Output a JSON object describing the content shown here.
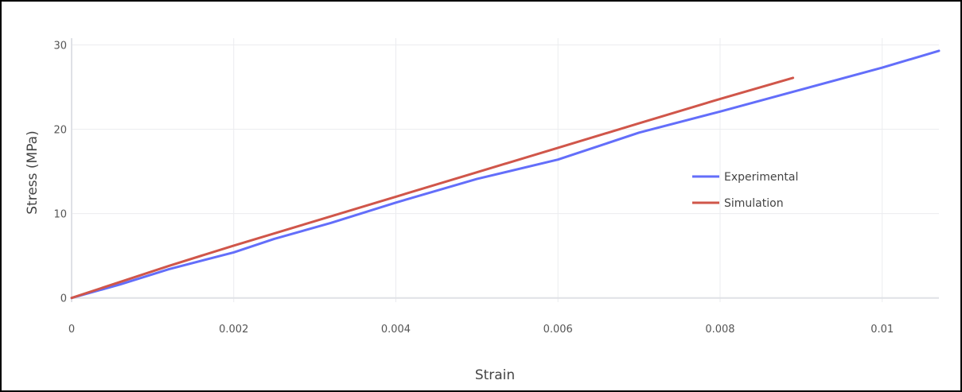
{
  "chart_data": {
    "type": "line",
    "title": "",
    "xlabel": "Strain",
    "ylabel": "Stress (MPa)",
    "xlim": [
      0,
      0.0107
    ],
    "ylim": [
      -0.5,
      30.8
    ],
    "x_ticks": [
      0,
      0.002,
      0.004,
      0.006,
      0.008,
      0.01
    ],
    "x_tick_labels": [
      "0",
      "0.002",
      "0.004",
      "0.006",
      "0.008",
      "0.01"
    ],
    "y_ticks": [
      0,
      10,
      20,
      30
    ],
    "y_tick_labels": [
      "0",
      "10",
      "20",
      "30"
    ],
    "grid": true,
    "legend_position": "right",
    "series": [
      {
        "name": "Experimental",
        "color": "#636efa",
        "x": [
          0,
          0.0006,
          0.0012,
          0.002,
          0.0025,
          0.0032,
          0.004,
          0.005,
          0.006,
          0.0065,
          0.007,
          0.008,
          0.009,
          0.01,
          0.0107
        ],
        "y": [
          0,
          1.6,
          3.4,
          5.4,
          7.0,
          8.9,
          11.3,
          14.1,
          16.4,
          18.0,
          19.6,
          22.1,
          24.7,
          27.3,
          29.3
        ]
      },
      {
        "name": "Simulation",
        "color": "#d0564a",
        "x": [
          0,
          0.0012,
          0.002,
          0.003,
          0.004,
          0.005,
          0.006,
          0.007,
          0.008,
          0.0089
        ],
        "y": [
          0,
          3.8,
          6.2,
          9.1,
          12.0,
          14.9,
          17.8,
          20.7,
          23.6,
          26.1
        ]
      }
    ]
  }
}
